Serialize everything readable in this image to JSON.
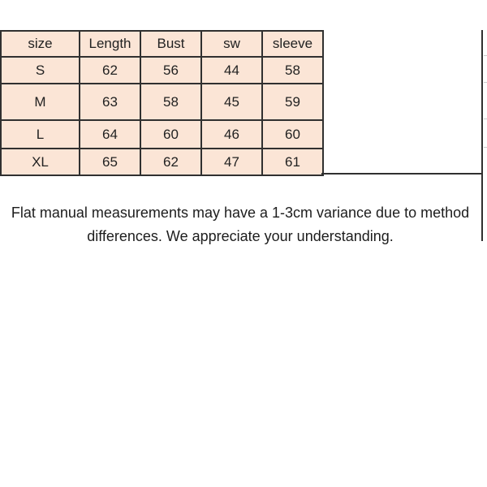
{
  "table": {
    "headers": [
      "size",
      "Length",
      "Bust",
      "sw",
      "sleeve"
    ],
    "rows": [
      [
        "S",
        "62",
        "56",
        "44",
        "58"
      ],
      [
        "M",
        "63",
        "58",
        "45",
        "59"
      ],
      [
        "L",
        "64",
        "60",
        "46",
        "60"
      ],
      [
        "XL",
        "65",
        "62",
        "47",
        "61"
      ]
    ]
  },
  "note": {
    "lines": [
      "Flat manual measurements may have a 1-3cm variance due to method",
      "differences. We appreciate your understanding."
    ]
  },
  "colors": {
    "cell_fill": "#fbe5d6",
    "grid_border": "#303030",
    "text": "#1d1d1d",
    "faint_line": "#cccccc",
    "background": "#ffffff"
  }
}
